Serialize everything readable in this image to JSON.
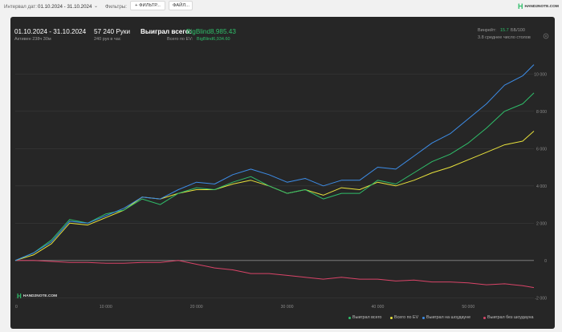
{
  "toolbar": {
    "interval_label": "Интервал дат:",
    "date_range": "01.10.2024 - 31.10.2024",
    "filters_label": "Фильтры:",
    "filter_button": "+ ФИЛЬТР...",
    "file_button": "ФАЙЛ...",
    "logo_text": "HAND2NOTE.COM"
  },
  "summary": {
    "dates": "01.10.2024 - 31.10.2024",
    "active": "Активен 238ч 30м",
    "hands": "57 240 Руки",
    "hands_per_hour": "240 рук в час",
    "won_label": "Выиграл всего:",
    "won_value": "BigBlind8,985.43",
    "ev_label": "Всего по EV:",
    "ev_value": "BigBlind6,934.60",
    "winrate_label": "Винрейт:",
    "winrate_value": "15.7",
    "winrate_rest": "ББ/100",
    "avg_tables": "3.8 среднее число столов"
  },
  "watermark": "HAND2NOTE.COM",
  "colors": {
    "won": "#2fbe6a",
    "ev": "#e8e23c",
    "showdown": "#3d8de8",
    "non_showdown": "#d94468",
    "panel_bg": "#262626"
  },
  "chart_data": {
    "type": "line",
    "xlabel": "",
    "ylabel": "",
    "x_ticks": [
      0,
      10000,
      20000,
      30000,
      40000,
      50000
    ],
    "x_tick_labels": [
      "0",
      "10 000",
      "20 000",
      "30 000",
      "40 000",
      "50 000"
    ],
    "y_ticks": [
      -2000,
      0,
      2000,
      4000,
      6000,
      8000,
      10000
    ],
    "y_tick_labels": [
      "-2 000",
      "0",
      "2 000",
      "4 000",
      "6 000",
      "8 000",
      "10 000"
    ],
    "xlim": [
      0,
      57240
    ],
    "ylim": [
      -2200,
      11000
    ],
    "x": [
      0,
      2000,
      4000,
      6000,
      8000,
      10000,
      12000,
      14000,
      16000,
      18000,
      20000,
      22000,
      24000,
      26000,
      28000,
      30000,
      32000,
      34000,
      36000,
      38000,
      40000,
      42000,
      44000,
      46000,
      48000,
      50000,
      52000,
      54000,
      56000,
      57240
    ],
    "series": [
      {
        "name": "Выиграл всего",
        "color": "#2fbe6a",
        "values": [
          0,
          400,
          1100,
          2200,
          2000,
          2500,
          2700,
          3300,
          3000,
          3600,
          3900,
          3800,
          4200,
          4500,
          4000,
          3600,
          3800,
          3300,
          3600,
          3600,
          4300,
          4100,
          4700,
          5300,
          5700,
          6300,
          7100,
          8000,
          8400,
          8985
        ]
      },
      {
        "name": "Всего по EV",
        "color": "#e8e23c",
        "values": [
          0,
          300,
          900,
          2000,
          1900,
          2300,
          2700,
          3400,
          3300,
          3600,
          3800,
          3800,
          4100,
          4300,
          4000,
          3600,
          3800,
          3500,
          3900,
          3800,
          4200,
          4000,
          4300,
          4700,
          5000,
          5400,
          5800,
          6200,
          6400,
          6935
        ]
      },
      {
        "name": "Выиграл на шоудауне",
        "color": "#3d8de8",
        "values": [
          0,
          400,
          1000,
          2100,
          2000,
          2400,
          2800,
          3400,
          3300,
          3800,
          4200,
          4100,
          4600,
          4900,
          4600,
          4200,
          4400,
          4000,
          4300,
          4300,
          5000,
          4900,
          5600,
          6300,
          6800,
          7600,
          8400,
          9400,
          9900,
          10500
        ]
      },
      {
        "name": "Выиграл без шоудауна",
        "color": "#d94468",
        "values": [
          0,
          0,
          -50,
          -100,
          -100,
          -150,
          -150,
          -100,
          -100,
          0,
          -200,
          -400,
          -500,
          -700,
          -700,
          -800,
          -900,
          -1000,
          -900,
          -1000,
          -1000,
          -1100,
          -1050,
          -1150,
          -1150,
          -1200,
          -1300,
          -1250,
          -1350,
          -1450
        ]
      }
    ]
  }
}
